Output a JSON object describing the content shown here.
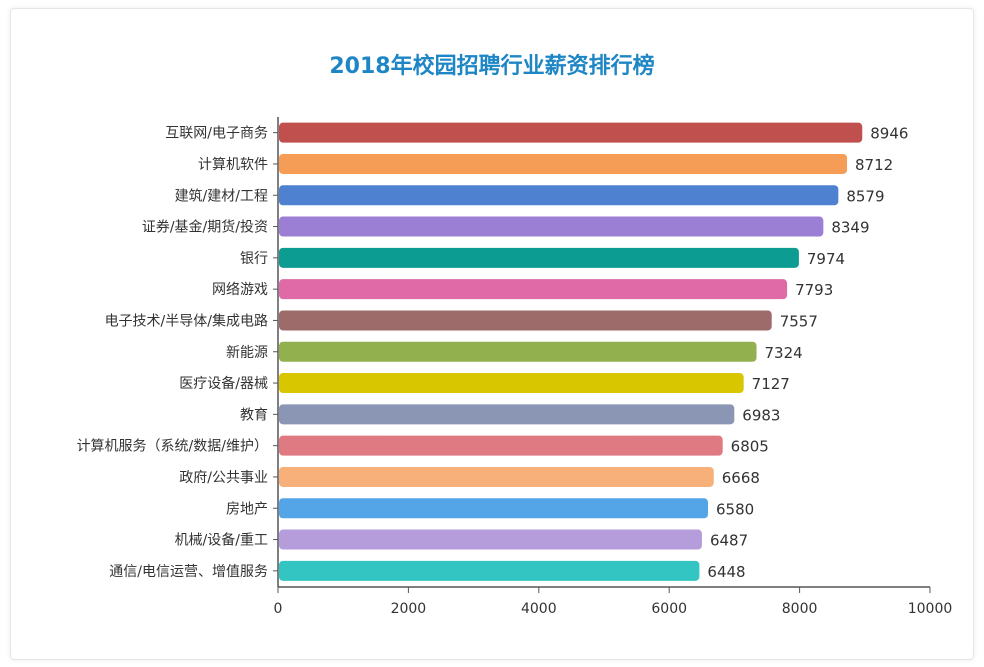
{
  "chart_data": {
    "type": "bar",
    "orientation": "horizontal",
    "title": "2018年校园招聘行业薪资排行榜",
    "categories": [
      "互联网/电子商务",
      "计算机软件",
      "建筑/建材/工程",
      "证券/基金/期货/投资",
      "银行",
      "网络游戏",
      "电子技术/半导体/集成电路",
      "新能源",
      "医疗设备/器械",
      "教育",
      "计算机服务（系统/数据/维护）",
      "政府/公共事业",
      "房地产",
      "机械/设备/重工",
      "通信/电信运营、增值服务"
    ],
    "values": [
      8946,
      8712,
      8579,
      8349,
      7974,
      7793,
      7557,
      7324,
      7127,
      6983,
      6805,
      6668,
      6580,
      6487,
      6448
    ],
    "colors": [
      "#c0504d",
      "#f59d56",
      "#4f81d1",
      "#9b7fd4",
      "#0d9c91",
      "#e06aa8",
      "#9e6b6b",
      "#93b04e",
      "#d8c700",
      "#8a96b4",
      "#e07a82",
      "#f7b07a",
      "#53a5e7",
      "#b59ddc",
      "#32c5c2"
    ],
    "xlim": [
      0,
      10000
    ],
    "xticks": [
      0,
      2000,
      4000,
      6000,
      8000,
      10000
    ],
    "xlabel": "",
    "ylabel": "",
    "grid": false,
    "legend": "none"
  }
}
